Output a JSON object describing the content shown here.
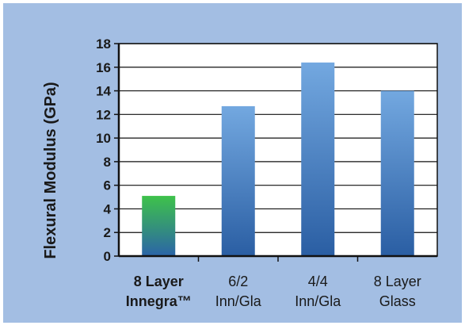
{
  "colors": {
    "panel": "#a3bee3",
    "plot_bg": "#ffffff",
    "bar_top": "#73a8e0",
    "bar_bottom": "#2a5ea3",
    "highlight_top": "#3ec24a",
    "highlight_bottom": "#2b64a8",
    "text": "#1a1a1a"
  },
  "chart_data": {
    "type": "bar",
    "ylabel": "Flexural Modulus (GPa)",
    "ylim": [
      0,
      18
    ],
    "yticks": [
      "0",
      "2",
      "4",
      "6",
      "8",
      "10",
      "12",
      "14",
      "16",
      "18"
    ],
    "grid": "horizontal",
    "legend": "none",
    "categories": [
      {
        "line1": "8 Layer",
        "line2": "Innegra™"
      },
      {
        "line1": "6/2",
        "line2": "Inn/Gla"
      },
      {
        "line1": "4/4",
        "line2": "Inn/Gla"
      },
      {
        "line1": "8 Layer",
        "line2": "Glass"
      }
    ],
    "values": [
      5.1,
      12.7,
      16.4,
      14.0
    ],
    "highlight_index": 0
  }
}
